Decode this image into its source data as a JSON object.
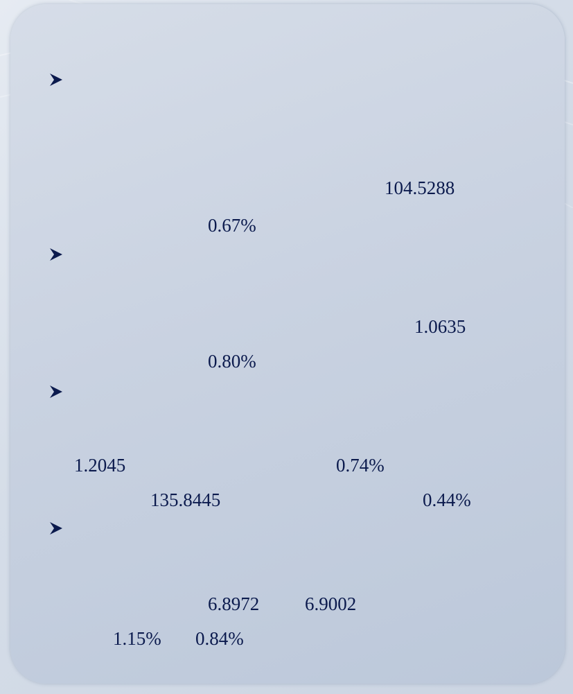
{
  "items": [
    {
      "lines": [
        [
          "104.5288"
        ],
        [
          "0.67%"
        ]
      ]
    },
    {
      "lines": [
        [
          "1.0635"
        ],
        [
          "0.80%"
        ]
      ]
    },
    {
      "lines": [
        [
          "1.2045",
          "0.74%"
        ],
        [
          "135.8445",
          "0.44%"
        ]
      ]
    },
    {
      "lines": [
        [
          "6.8972",
          "6.9002"
        ],
        [
          "1.15%",
          "0.84%"
        ]
      ]
    }
  ]
}
